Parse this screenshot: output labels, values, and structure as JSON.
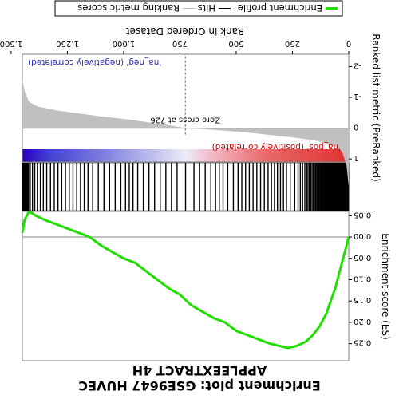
{
  "title_line1": "Enrichment plot: GSE9647 HUVEC",
  "title_line2": "APPLEEXTRACT 4H",
  "legend": {
    "items": [
      {
        "label": "Enrichment profile",
        "color": "#22dd00"
      },
      {
        "label": "Hits",
        "color": "#000000"
      },
      {
        "label": "Ranking metric scores",
        "color": "#bbbbbb"
      }
    ]
  },
  "annotations": {
    "pos_label": "'na_pos' (positively correlated)",
    "neg_label": "'na_neg' (negatively correlated)",
    "zero_cross": "Zero cross at 726"
  },
  "colors": {
    "es_line": "#22dd00",
    "metric_fill": "#c0c0c0",
    "hits": "#000000",
    "pos_strong": "#e03030",
    "neg_strong": "#2a00c0"
  },
  "chart_data": [
    {
      "type": "line",
      "panel": "enrichment",
      "ylabel": "Enrichment score (ES)",
      "xlim": [
        0,
        1450
      ],
      "ylim": [
        -0.06,
        0.29
      ],
      "yticks": [
        -0.05,
        0.0,
        0.05,
        0.1,
        0.15,
        0.2,
        0.25
      ],
      "ytick_labels": [
        "-0.05",
        "0.00",
        "0.05",
        "0.10",
        "0.15",
        "0.20",
        "0.25"
      ],
      "series": [
        {
          "name": "Enrichment profile",
          "x": [
            0,
            20,
            40,
            60,
            80,
            100,
            130,
            160,
            190,
            230,
            270,
            310,
            350,
            400,
            450,
            500,
            550,
            600,
            650,
            700,
            750,
            800,
            850,
            900,
            950,
            1000,
            1050,
            1100,
            1150,
            1200,
            1250,
            1300,
            1350,
            1390,
            1420,
            1440,
            1450
          ],
          "y": [
            0.0,
            0.04,
            0.08,
            0.12,
            0.15,
            0.18,
            0.21,
            0.23,
            0.245,
            0.255,
            0.26,
            0.255,
            0.25,
            0.24,
            0.23,
            0.22,
            0.2,
            0.19,
            0.175,
            0.16,
            0.135,
            0.12,
            0.1,
            0.08,
            0.06,
            0.05,
            0.035,
            0.02,
            0.0,
            -0.01,
            -0.02,
            -0.03,
            -0.04,
            -0.05,
            -0.06,
            -0.04,
            -0.01
          ]
        }
      ]
    },
    {
      "type": "area",
      "panel": "ranked_metric",
      "title": "Rank in Ordered Dataset",
      "ylabel": "Ranked list metric (PreRanked)",
      "xlim": [
        0,
        1450
      ],
      "xticks": [
        0,
        250,
        500,
        750,
        1000,
        1250,
        1500
      ],
      "xtick_labels": [
        "0",
        "250",
        "500",
        "750",
        "1,000",
        "1,250",
        "1,500"
      ],
      "ylim": [
        -2.4,
        1.1
      ],
      "yticks": [
        -2,
        -1,
        0,
        1
      ],
      "ytick_labels": [
        "-2",
        "-1",
        "0",
        "1"
      ],
      "zero_cross": 726,
      "x": [
        0,
        10,
        30,
        60,
        100,
        150,
        250,
        350,
        450,
        550,
        650,
        726,
        800,
        900,
        1000,
        1100,
        1200,
        1300,
        1380,
        1420,
        1440,
        1450
      ],
      "y": [
        1.9,
        1.2,
        0.75,
        0.6,
        0.5,
        0.4,
        0.3,
        0.22,
        0.14,
        0.08,
        0.03,
        0.0,
        -0.1,
        -0.2,
        -0.3,
        -0.38,
        -0.48,
        -0.58,
        -0.7,
        -0.85,
        -1.2,
        -1.6
      ]
    }
  ]
}
